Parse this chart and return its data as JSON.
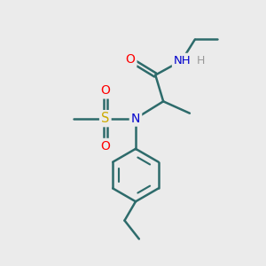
{
  "bg_color": "#ebebeb",
  "bond_color": "#2d6b6b",
  "atom_colors": {
    "O": "#ff0000",
    "N": "#0000cd",
    "S": "#ccaa00",
    "H": "#999999",
    "C": "#2d6b6b"
  },
  "bond_width": 1.8,
  "figsize": [
    3.0,
    3.0
  ],
  "dpi": 100
}
